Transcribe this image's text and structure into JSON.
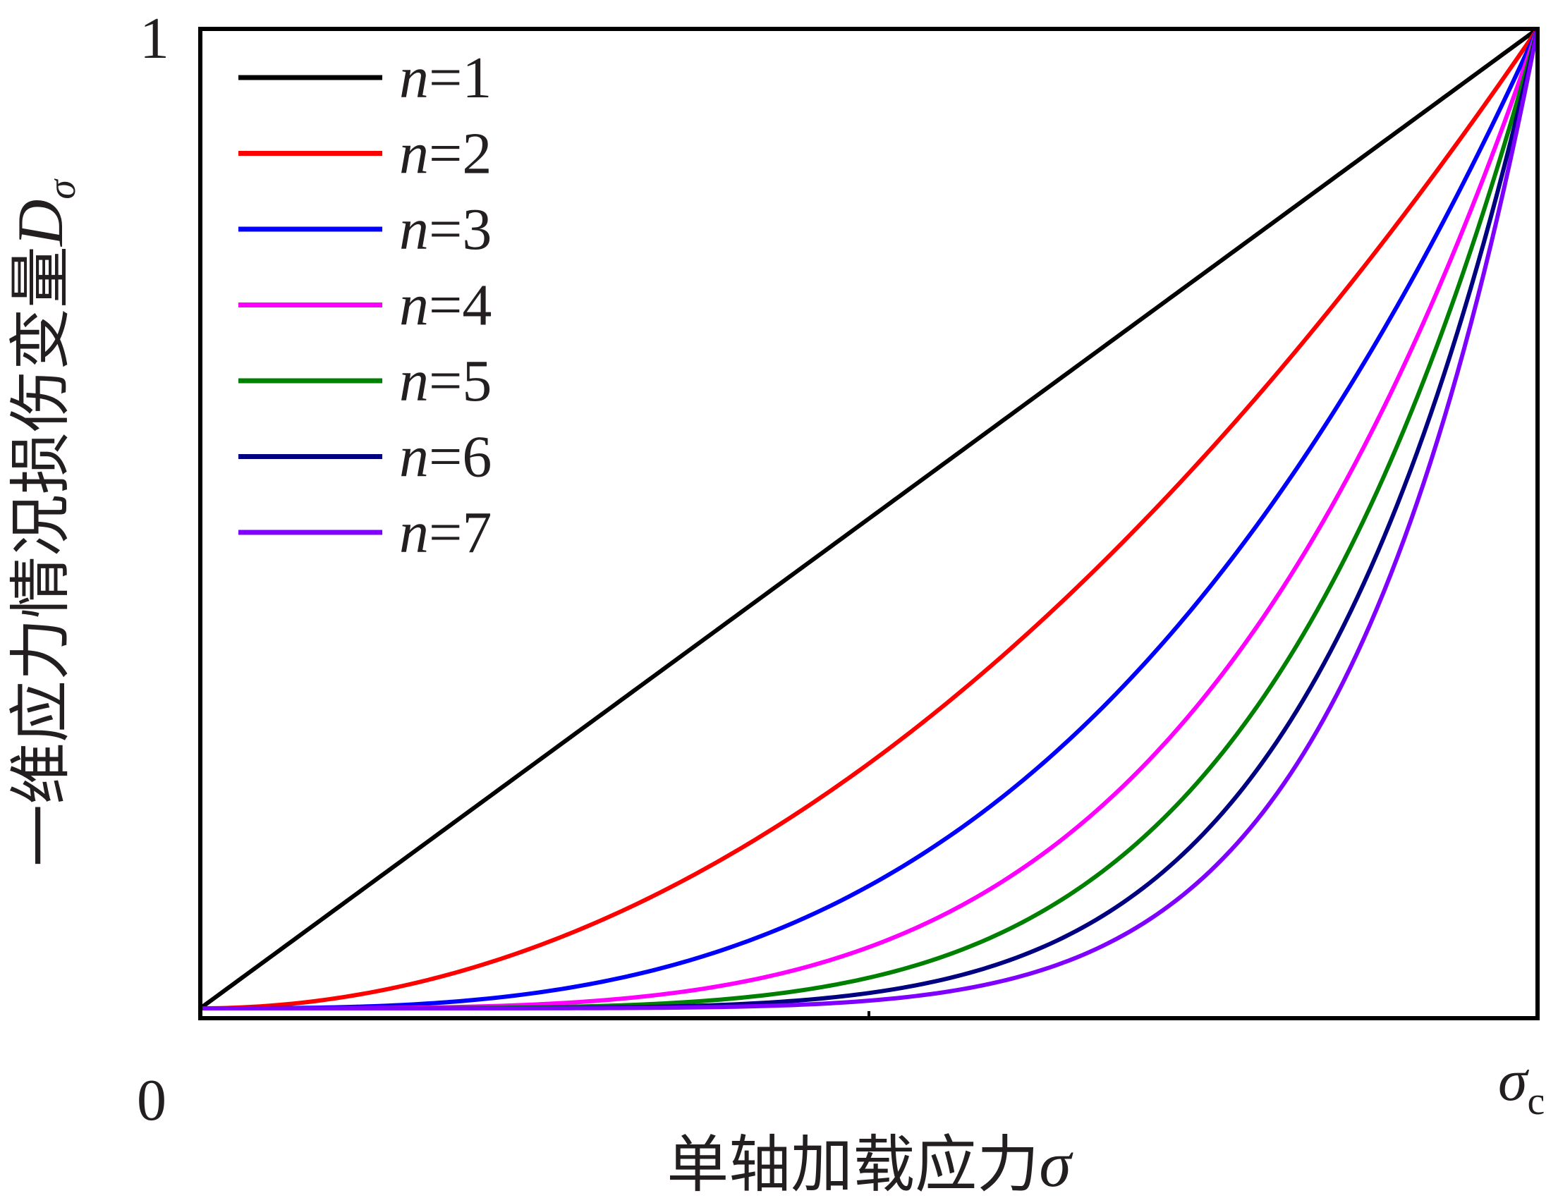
{
  "chart_data": {
    "type": "line",
    "title": "",
    "xlabel": "单轴加载应力",
    "xlabel_symbol": "σ",
    "ylabel": "一维应力情况损伤变量",
    "ylabel_symbol": "D",
    "ylabel_subscript": "σ",
    "x_ticks": {
      "min_label": "0",
      "max_label": "σ",
      "max_label_subscript": "c"
    },
    "y_ticks": {
      "max_label": "1"
    },
    "xlim": [
      0,
      1
    ],
    "ylim": [
      0,
      1
    ],
    "grid": false,
    "legend_position": "top-left",
    "legend_var": "n",
    "series": [
      {
        "name": "=1",
        "n": 1,
        "color": "#000000"
      },
      {
        "name": "=2",
        "n": 2,
        "color": "#ff0000"
      },
      {
        "name": "=3",
        "n": 3,
        "color": "#0000ff"
      },
      {
        "name": "=4",
        "n": 4,
        "color": "#ff00ff"
      },
      {
        "name": "=5",
        "n": 5,
        "color": "#008000"
      },
      {
        "name": "=6",
        "n": 6,
        "color": "#000080"
      },
      {
        "name": "=7",
        "n": 7,
        "color": "#7f00ff"
      }
    ]
  }
}
